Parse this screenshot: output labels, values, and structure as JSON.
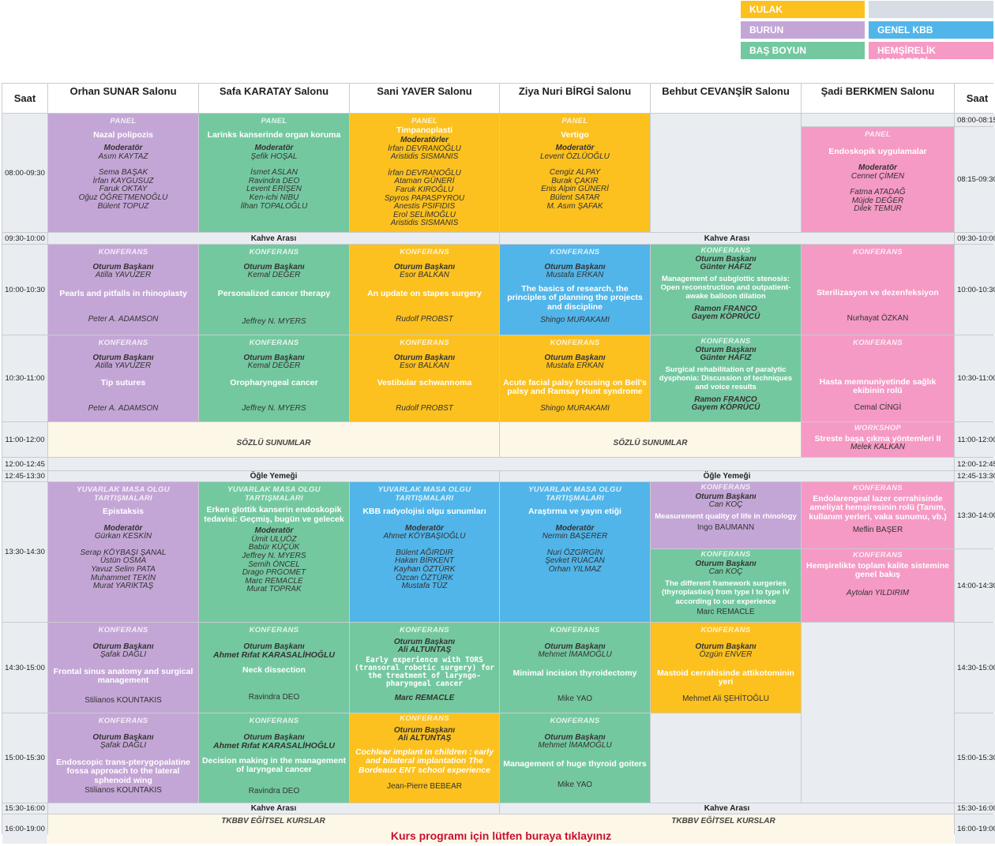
{
  "legend": {
    "kulak": "KULAK",
    "blank": "",
    "burun": "BURUN",
    "genel": "GENEL KBB",
    "bas": "BAŞ BOYUN",
    "hemsire": "HEMŞİRELİK KONGRESİ"
  },
  "headers": {
    "saat": "Saat",
    "h1": "Orhan SUNAR Salonu",
    "h2": "Safa KARATAY Salonu",
    "h3": "Sani YAVER Salonu",
    "h4": "Ziya Nuri BİRGİ Salonu",
    "h5": "Behbut CEVANŞİR Salonu",
    "h6": "Şadi BERKMEN Salonu"
  },
  "times": {
    "t1": "08:00-09:30",
    "t1r": "08:00-08:15",
    "t1r2": "08:15-09:30",
    "t2": "09:30-10:00",
    "t3": "10:00-10:30",
    "t4": "10:30-11:00",
    "t5": "11:00-12:00",
    "t6": "12:00-12:45",
    "t7": "12:45-13:30",
    "t8": "13:30-14:30",
    "t8r": "13:30-14:00",
    "t8r2": "14:00-14:30",
    "t9": "14:30-15:00",
    "t10": "15:00-15:30",
    "t11": "15:30-16:00",
    "t12": "16:00-19:00"
  },
  "breaks": {
    "coffee": "Kahve Arası",
    "lunch": "Öğle Yemeği",
    "oral": "SÖZLÜ SUNUMLAR",
    "courses": "TKBBV EĞİTSEL KURSLAR",
    "link": "Kurs programı için lütfen buraya tıklayınız"
  },
  "s1": {
    "c1": {
      "ty": "PANEL",
      "ti": "Nazal polipozis",
      "mo": "Moderatör",
      "mn": "Asım KAYTAZ",
      "m": [
        "Sema BAŞAK",
        "İrfan KAYGUSUZ",
        "Faruk OKTAY",
        "Oğuz ÖĞRETMENOĞLU",
        "Bülent TOPUZ"
      ]
    },
    "c2": {
      "ty": "PANEL",
      "ti": "Larinks kanserinde organ koruma",
      "mo": "Moderatör",
      "mn": "Şefik HOŞAL",
      "m": [
        "İsmet ASLAN",
        "Ravindra DEO",
        "Levent ERİŞEN",
        "Ken-ichi NIBU",
        "İlhan TOPALOĞLU"
      ]
    },
    "c3": {
      "ty": "PANEL",
      "ti": "Timpanoplasti",
      "mo": "Moderatörler",
      "mn": [
        "İrfan DEVRANOĞLU",
        "Aristidis SISMANIS"
      ],
      "m": [
        "İrfan DEVRANOĞLU",
        "Ataman GÜNERİ",
        "Faruk KIROĞLU",
        "Spyros PAPASPYROU",
        "Anestis PSIFIDIS",
        "Erol SELİMOĞLU",
        "Aristidis SISMANIS"
      ]
    },
    "c4": {
      "ty": "PANEL",
      "ti": "Vertigo",
      "mo": "Moderatör",
      "mn": "Levent ÖZLÜOĞLU",
      "m": [
        "Cengiz ALPAY",
        "Burak ÇAKIR",
        "Enis Alpin GÜNERİ",
        "Bülent SATAR",
        "M. Asım ŞAFAK"
      ]
    },
    "c6": {
      "ty": "PANEL",
      "ti": "Endoskopik uygulamalar",
      "mo": "Moderatör",
      "mn": "Cennet ÇİMEN",
      "m": [
        "Fatma ATADAĞ",
        "Müjde DEĞER",
        "Dilek TEMUR"
      ]
    }
  },
  "s2": {
    "c1": {
      "ty": "KONFERANS",
      "ch": "Oturum Başkanı",
      "cn": "Atilla YAVUZER",
      "ti": "Pearls and pitfalls in rhinoplasty",
      "sp": "Peter A. ADAMSON"
    },
    "c2": {
      "ty": "KONFERANS",
      "ch": "Oturum Başkanı",
      "cn": "Kemal DEĞER",
      "ti": "Personalized cancer therapy",
      "sp": "Jeffrey N. MYERS"
    },
    "c3": {
      "ty": "KONFERANS",
      "ch": "Oturum Başkanı",
      "cn": "Esor BALKAN",
      "ti": "An update on stapes surgery",
      "sp": "Rudolf PROBST"
    },
    "c4": {
      "ty": "KONFERANS",
      "ch": "Oturum Başkanı",
      "cn": "Mustafa ERKAN",
      "ti": "The basics of research, the principles of planning the projects and discipline",
      "sp": "Shingo MURAKAMI"
    },
    "c5": {
      "ty": "KONFERANS",
      "ch": "Oturum Başkanı",
      "cn": "Günter HAFIZ",
      "ti": "Management of subglottic stenosis: Open reconstruction and outpatient-awake balloon dilation",
      "sp": "Ramon FRANCO",
      "sp2": "Gayem KÖPRÜCÜ"
    },
    "c6": {
      "ty": "KONFERANS",
      "ti": "Sterilizasyon ve dezenfeksiyon",
      "sp": "Nurhayat ÖZKAN"
    }
  },
  "s3": {
    "c1": {
      "ty": "KONFERANS",
      "ch": "Oturum Başkanı",
      "cn": "Atilla YAVUZER",
      "ti": "Tip sutures",
      "sp": "Peter A. ADAMSON"
    },
    "c2": {
      "ty": "KONFERANS",
      "ch": "Oturum Başkanı",
      "cn": "Kemal DEĞER",
      "ti": "Oropharyngeal cancer",
      "sp": "Jeffrey N. MYERS"
    },
    "c3": {
      "ty": "KONFERANS",
      "ch": "Oturum Başkanı",
      "cn": "Esor BALKAN",
      "ti": "Vestibular schwannoma",
      "sp": "Rudolf PROBST"
    },
    "c4": {
      "ty": "KONFERANS",
      "ch": "Oturum Başkanı",
      "cn": "Mustafa ERKAN",
      "ti": "Acute facial palsy focusing on Bell's palsy and Ramsay Hunt syndrome",
      "sp": "Shingo MURAKAMI"
    },
    "c5": {
      "ty": "KONFERANS",
      "ch": "Oturum Başkanı",
      "cn": "Günter HAFIZ",
      "ti": "Surgical rehabilitation of paralytic dysphonia: Discussion of techniques and voice results",
      "sp": "Ramon FRANCO",
      "sp2": "Gayem KÖPRÜCÜ"
    },
    "c6": {
      "ty": "KONFERANS",
      "ti": "Hasta memnuniyetinde sağlık ekibinin rolü",
      "sp": "Cemal CİNGİ"
    }
  },
  "s4": {
    "c6": {
      "ty": "WORKSHOP",
      "ti": "Streste başa çıkma yöntemleri II",
      "sp": "Melek KALKAN"
    }
  },
  "s5": {
    "c1": {
      "ty": "YUVARLAK MASA OLGU TARTIŞMALARI",
      "ti": "Epistaksis",
      "mo": "Moderatör",
      "mn": "Gürkan KESKİN",
      "m": [
        "Serap KÖYBAŞI ŞANAL",
        "Üstün OSMA",
        "Yavuz Selim PATA",
        "Muhammet TEKİN",
        "Murat YARIKTAŞ"
      ]
    },
    "c2": {
      "ty": "YUVARLAK MASA OLGU TARTIŞMALARI",
      "ti": "Erken glottik kanserin endoskopik tedavisi: Geçmiş, bugün ve gelecek",
      "mo": "Moderatör",
      "mn": "Ümit ULUÖZ",
      "m": [
        "Babür KÜÇÜK",
        "Jeffrey N. MYERS",
        "Semih ÖNCEL",
        "Drago PRGOMET",
        "Marc REMACLE",
        "Murat TOPRAK"
      ]
    },
    "c3": {
      "ty": "YUVARLAK MASA OLGU TARTIŞMALARI",
      "ti": "KBB radyolojisi olgu sunumları",
      "mo": "Moderatör",
      "mn": "Ahmet KÖYBAŞIOĞLU",
      "m": [
        "Bülent AĞIRDIR",
        "Hakan BİRKENT",
        "Kayhan ÖZTÜRK",
        "Özcan ÖZTÜRK",
        "Mustafa TÜZ"
      ]
    },
    "c4": {
      "ty": "YUVARLAK MASA OLGU TARTIŞMALARI",
      "ti": "Araştırma ve yayın etiği",
      "mo": "Moderatör",
      "mn": "Nermin BAŞERER",
      "m": [
        "Nuri ÖZGİRGİN",
        "Şevket RUACAN",
        "Orhan YILMAZ"
      ]
    },
    "c5a": {
      "ty": "KONFERANS",
      "ch": "Oturum Başkanı",
      "cn": "Can KOÇ",
      "ti": "Measurement quality of life in rhinology",
      "sp": "Ingo BAUMANN"
    },
    "c5b": {
      "ty": "KONFERANS",
      "ch": "Oturum Başkanı",
      "cn": "Can KOÇ",
      "ti": "The different framework surgeries (thyroplasties) from type I to type IV according to our experience",
      "sp": "Marc REMACLE"
    },
    "c6a": {
      "ty": "KONFERANS",
      "ti": "Endolarengeal lazer cerrahisinde ameliyat hemşiresinin rolü (Tanım, kullanım yerleri, vaka sunumu, vb.)",
      "sp": "Meflin BAŞER"
    },
    "c6b": {
      "ty": "KONFERANS",
      "ti": "Hemşirelikte toplam kalite sistemine genel bakış",
      "sp": "Aytolan YILDIRIM"
    }
  },
  "s6": {
    "c1": {
      "ty": "KONFERANS",
      "ch": "Oturum Başkanı",
      "cn": "Şafak DAĞLI",
      "ti": "Frontal sinus anatomy and surgical management",
      "sp": "Stilianos KOUNTAKIS"
    },
    "c2": {
      "ty": "KONFERANS",
      "ch": "Oturum Başkanı",
      "cn": "Ahmet Rıfat KARASALİHOĞLU",
      "ti": "Neck dissection",
      "sp": "Ravindra DEO"
    },
    "c3": {
      "ty": "KONFERANS",
      "ch": "Oturum Başkanı",
      "cn": "Ali ALTUNTAŞ",
      "ti": "Early experience with TORS (transoral robotic surgery) for the treatment of laryngo-pharyngeal cancer",
      "sp": "Marc REMACLE"
    },
    "c4": {
      "ty": "KONFERANS",
      "ch": "Oturum Başkanı",
      "cn": "Mehmet İMAMOĞLU",
      "ti": "Minimal incision thyroidectomy",
      "sp": "Mike YAO"
    },
    "c5": {
      "ty": "KONFERANS",
      "ch": "Oturum Başkanı",
      "cn": "Özgün ENVER",
      "ti": "Mastoid cerrahisinde attikotominin yeri",
      "sp": "Mehmet Ali ŞEHİTOĞLU"
    }
  },
  "s7": {
    "c1": {
      "ty": "KONFERANS",
      "ch": "Oturum Başkanı",
      "cn": "Şafak DAĞLI",
      "ti": "Endoscopic trans-pterygopalatine fossa approach to the lateral sphenoid wing",
      "sp": "Stilianos KOUNTAKIS"
    },
    "c2": {
      "ty": "KONFERANS",
      "ch": "Oturum Başkanı",
      "cn": "Ahmet Rıfat KARASALİHOĞLU",
      "ti": "Decision making in the management of laryngeal cancer",
      "sp": "Ravindra DEO"
    },
    "c3": {
      "ty": "KONFERANS",
      "ch": "Oturum Başkanı",
      "cn": "Ali ALTUNTAŞ",
      "ti": "Cochlear implant in children : early and bilateral implantation The Bordeaux ENT school experience",
      "sp": "Jean-Pierre BEBEAR"
    },
    "c4": {
      "ty": "KONFERANS",
      "ch": "Oturum Başkanı",
      "cn": "Mehmet İMAMOĞLU",
      "ti": "Management of huge thyroid goiters",
      "sp": "Mike YAO"
    }
  }
}
